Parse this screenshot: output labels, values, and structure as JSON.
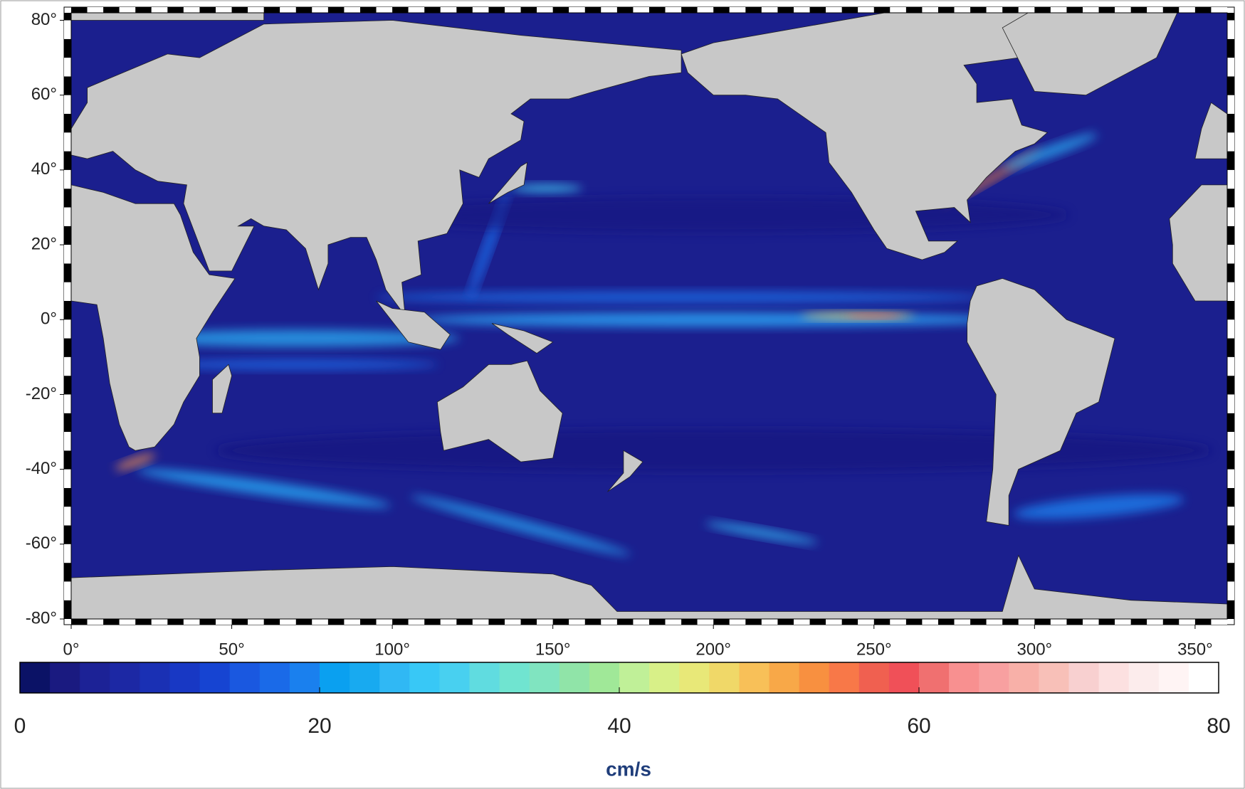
{
  "map": {
    "xlim": [
      0,
      360
    ],
    "ylim": [
      -80,
      82
    ],
    "xticks": [
      {
        "value": 0,
        "label": "0°"
      },
      {
        "value": 50,
        "label": "50°"
      },
      {
        "value": 100,
        "label": "100°"
      },
      {
        "value": 150,
        "label": "150°"
      },
      {
        "value": 200,
        "label": "200°"
      },
      {
        "value": 250,
        "label": "250°"
      },
      {
        "value": 300,
        "label": "300°"
      },
      {
        "value": 350,
        "label": "350°"
      }
    ],
    "yticks": [
      {
        "value": 80,
        "label": "80°"
      },
      {
        "value": 60,
        "label": "60°"
      },
      {
        "value": 40,
        "label": "40°"
      },
      {
        "value": 20,
        "label": "20°"
      },
      {
        "value": 0,
        "label": "0°"
      },
      {
        "value": -20,
        "label": "-20°"
      },
      {
        "value": -40,
        "label": "-40°"
      },
      {
        "value": -60,
        "label": "-60°"
      },
      {
        "value": -80,
        "label": "-80°"
      }
    ]
  },
  "colorbar": {
    "lim": [
      0,
      80
    ],
    "ticks": [
      0,
      20,
      40,
      60,
      80
    ],
    "label": "cm/s",
    "colors": [
      "#0b1266",
      "#1a1a80",
      "#1c2296",
      "#1c28a4",
      "#1a30b4",
      "#1838c4",
      "#1644d2",
      "#1a58e0",
      "#1a6ae8",
      "#1a80ee",
      "#0aa0f0",
      "#18aaf0",
      "#30b8f4",
      "#38c8f6",
      "#48d0f0",
      "#60dce0",
      "#70e4d0",
      "#80e4c0",
      "#90e4a8",
      "#a0e898",
      "#c0f098",
      "#d8f088",
      "#e8e878",
      "#f0d868",
      "#f8c058",
      "#f8a848",
      "#f89040",
      "#f87848",
      "#f06050",
      "#f05058",
      "#f07070",
      "#f89090",
      "#f8a0a0",
      "#f8b0a8",
      "#f8c0b8",
      "#f8d0d0",
      "#fce0e0",
      "#fcecec",
      "#fff4f4",
      "#ffffff"
    ]
  }
}
